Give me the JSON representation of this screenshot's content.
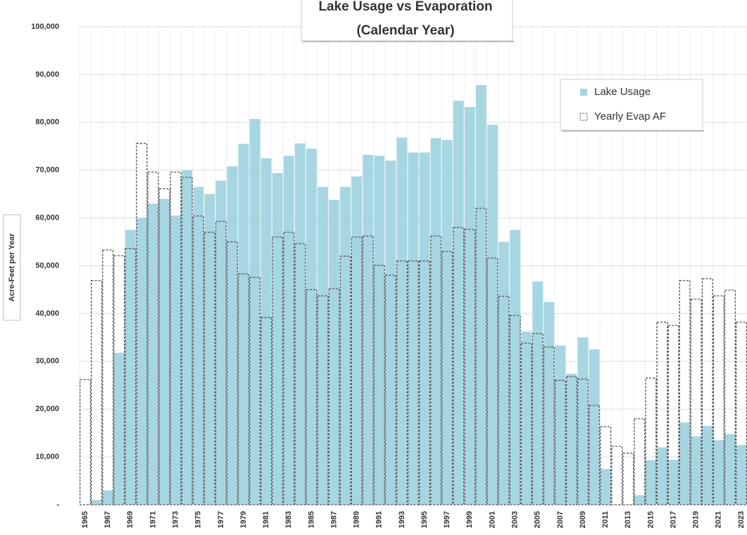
{
  "chart_data": {
    "type": "bar",
    "title": [
      "Lake Usage vs Evaporation",
      "(Calendar Year)"
    ],
    "y_label": "Acre-Feet per Year",
    "categories": [
      "1965",
      null,
      "1967",
      null,
      "1969",
      null,
      "1971",
      null,
      "1973",
      null,
      "1975",
      null,
      "1977",
      null,
      "1979",
      null,
      "1981",
      null,
      "1983",
      null,
      "1985",
      null,
      "1987",
      null,
      "1989",
      null,
      "1991",
      null,
      "1993",
      null,
      "1995",
      null,
      "1997",
      null,
      "1999",
      null,
      "2001",
      null,
      "2003",
      null,
      "2005",
      null,
      "2007",
      null,
      "2009",
      null,
      "2011",
      null,
      "2013",
      null,
      "2015",
      null,
      "2017",
      null,
      "2019",
      null,
      "2021",
      null,
      "2023"
    ],
    "series": [
      {
        "name": "Lake Usage",
        "color": "#a6d6e2",
        "style": "filled",
        "values": [
          0,
          1000,
          3000,
          31800,
          57500,
          60000,
          63000,
          64000,
          60500,
          70000,
          66500,
          65000,
          67800,
          70800,
          75500,
          80700,
          72500,
          69400,
          73000,
          75600,
          74500,
          66500,
          63800,
          66500,
          68700,
          73200,
          73000,
          72000,
          76800,
          73700,
          73700,
          76700,
          76300,
          84500,
          83200,
          87800,
          79500,
          55000,
          57500,
          36200,
          46700,
          42400,
          33300,
          27400,
          35000,
          32500,
          7500,
          0,
          0,
          2000,
          9300,
          12000,
          9400,
          17200,
          14300,
          16500,
          13500,
          14800,
          12500
        ]
      },
      {
        "name": "Yearly Evap AF",
        "color": "#555555",
        "style": "outline",
        "values": [
          26200,
          46900,
          53300,
          52100,
          53600,
          75600,
          69600,
          66100,
          69600,
          68500,
          60400,
          57000,
          59300,
          55000,
          48300,
          47600,
          39200,
          56000,
          57000,
          54600,
          45000,
          43700,
          45200,
          52000,
          56000,
          56200,
          50100,
          48000,
          51000,
          51000,
          51000,
          56200,
          53000,
          58000,
          57600,
          62000,
          51600,
          43600,
          39600,
          33800,
          35800,
          33000,
          26000,
          26800,
          26300,
          20800,
          16300,
          12200,
          10800,
          18000,
          26500,
          38200,
          37500,
          46900,
          43000,
          47300,
          43700,
          44900,
          38200
        ]
      }
    ],
    "ylim": [
      0,
      100000
    ],
    "yticks": [
      {
        "value": 0,
        "label": "-"
      },
      {
        "value": 10000,
        "label": "10,000"
      },
      {
        "value": 20000,
        "label": "20,000"
      },
      {
        "value": 30000,
        "label": "30,000"
      },
      {
        "value": 40000,
        "label": "40,000"
      },
      {
        "value": 50000,
        "label": "50,000"
      },
      {
        "value": 60000,
        "label": "60,000"
      },
      {
        "value": 70000,
        "label": "70,000"
      },
      {
        "value": 80000,
        "label": "80,000"
      },
      {
        "value": 90000,
        "label": "90,000"
      },
      {
        "value": 100000,
        "label": "100,000"
      }
    ],
    "grid": true,
    "legend": "upper right"
  }
}
